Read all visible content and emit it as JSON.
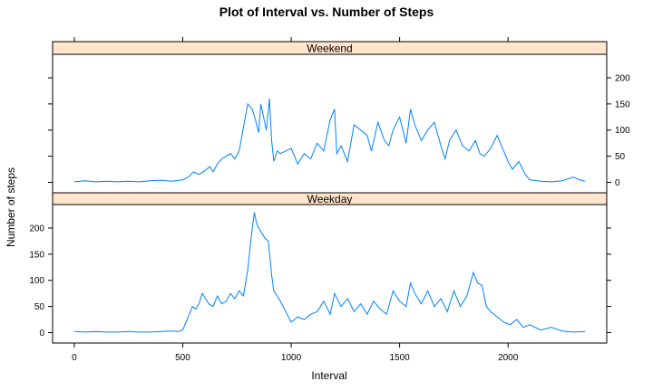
{
  "chart_data": {
    "type": "line",
    "title": "Plot of Interval vs. Number of Steps",
    "xlabel": "Interval",
    "ylabel": "Number of steps",
    "xlim": [
      -100,
      2455
    ],
    "ylim": [
      -20,
      245
    ],
    "x_ticks": [
      0,
      500,
      1000,
      1500,
      2000
    ],
    "y_ticks": [
      0,
      50,
      100,
      150,
      200
    ],
    "line_color": "#0080ff",
    "strip_color": "#ffe5cc",
    "panels": [
      {
        "name": "Weekend",
        "x": [
          0,
          50,
          100,
          150,
          200,
          250,
          300,
          350,
          400,
          450,
          500,
          525,
          550,
          575,
          600,
          625,
          640,
          660,
          680,
          700,
          720,
          740,
          760,
          780,
          800,
          820,
          835,
          850,
          860,
          875,
          885,
          900,
          910,
          920,
          935,
          950,
          975,
          1000,
          1030,
          1060,
          1090,
          1120,
          1150,
          1180,
          1200,
          1210,
          1230,
          1260,
          1290,
          1320,
          1350,
          1370,
          1400,
          1430,
          1450,
          1470,
          1500,
          1530,
          1550,
          1570,
          1600,
          1630,
          1660,
          1690,
          1710,
          1730,
          1760,
          1790,
          1820,
          1850,
          1870,
          1890,
          1920,
          1950,
          1980,
          2000,
          2020,
          2050,
          2080,
          2100,
          2150,
          2200,
          2250,
          2300,
          2330,
          2355
        ],
        "y": [
          1,
          3,
          1,
          2,
          1,
          2,
          1,
          3,
          4,
          2,
          5,
          10,
          20,
          15,
          22,
          30,
          20,
          35,
          45,
          50,
          55,
          45,
          60,
          105,
          150,
          140,
          120,
          95,
          150,
          120,
          100,
          160,
          80,
          40,
          60,
          55,
          60,
          65,
          35,
          55,
          45,
          75,
          60,
          120,
          140,
          55,
          70,
          40,
          110,
          100,
          90,
          60,
          115,
          80,
          70,
          100,
          125,
          75,
          140,
          110,
          80,
          100,
          115,
          70,
          45,
          80,
          100,
          70,
          60,
          80,
          55,
          50,
          65,
          90,
          60,
          40,
          25,
          40,
          15,
          5,
          2,
          1,
          3,
          10,
          5,
          2
        ]
      },
      {
        "name": "Weekday",
        "x": [
          0,
          50,
          100,
          150,
          200,
          250,
          300,
          350,
          400,
          450,
          480,
          500,
          515,
          530,
          545,
          560,
          575,
          590,
          605,
          620,
          640,
          660,
          680,
          700,
          720,
          740,
          760,
          780,
          800,
          815,
          830,
          840,
          850,
          865,
          880,
          895,
          910,
          920,
          935,
          950,
          975,
          1000,
          1030,
          1060,
          1090,
          1120,
          1150,
          1180,
          1200,
          1230,
          1260,
          1290,
          1320,
          1350,
          1380,
          1410,
          1440,
          1470,
          1500,
          1530,
          1550,
          1570,
          1600,
          1630,
          1660,
          1690,
          1720,
          1750,
          1780,
          1810,
          1840,
          1860,
          1880,
          1900,
          1920,
          1950,
          1980,
          2010,
          2040,
          2070,
          2100,
          2150,
          2200,
          2250,
          2300,
          2355
        ],
        "y": [
          2,
          1,
          2,
          1,
          1,
          2,
          1,
          1,
          2,
          3,
          2,
          5,
          20,
          35,
          50,
          45,
          55,
          75,
          65,
          55,
          50,
          70,
          55,
          60,
          75,
          65,
          80,
          70,
          120,
          180,
          230,
          210,
          200,
          190,
          180,
          175,
          110,
          80,
          70,
          60,
          40,
          20,
          30,
          25,
          35,
          40,
          60,
          35,
          75,
          50,
          65,
          40,
          55,
          35,
          60,
          45,
          35,
          80,
          60,
          50,
          95,
          75,
          55,
          80,
          50,
          65,
          40,
          80,
          50,
          70,
          115,
          95,
          90,
          50,
          40,
          30,
          20,
          15,
          25,
          10,
          15,
          5,
          10,
          3,
          1,
          2
        ]
      }
    ]
  }
}
